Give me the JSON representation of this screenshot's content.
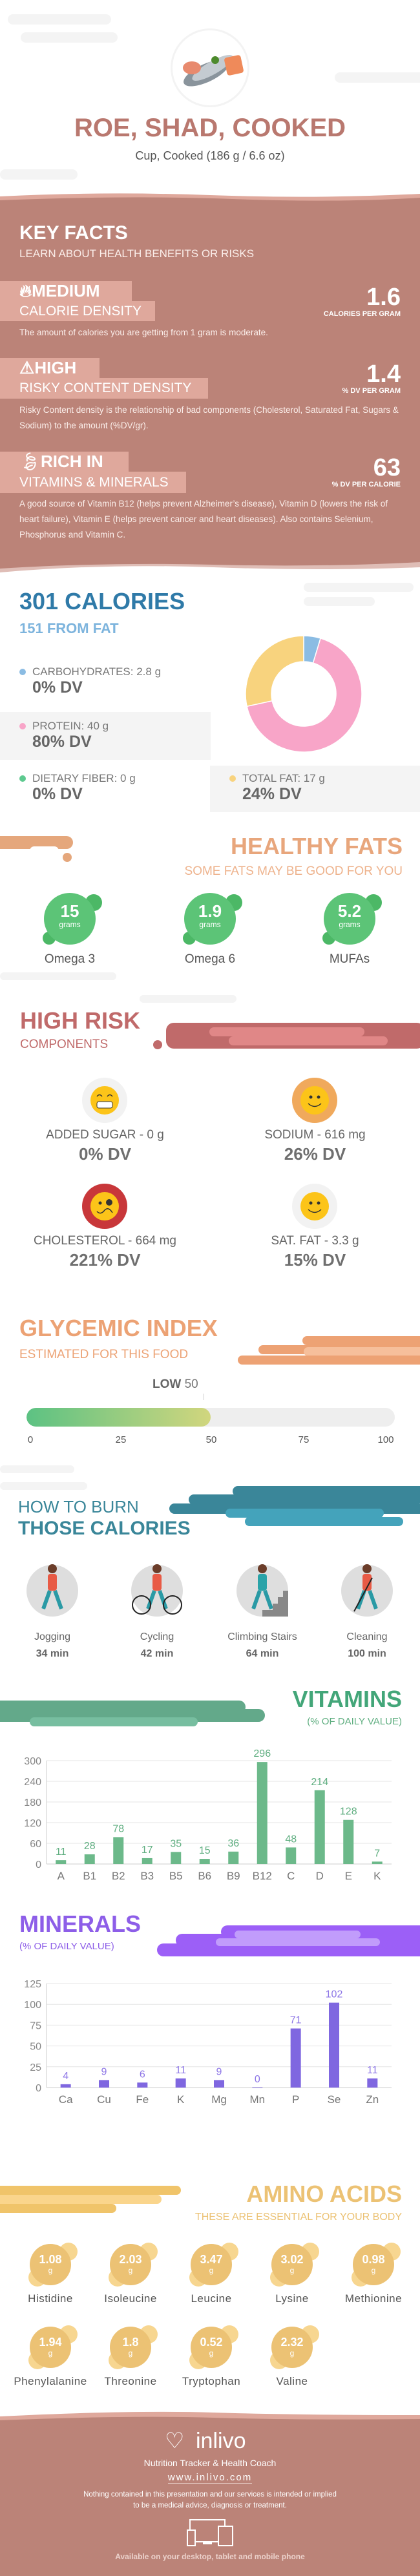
{
  "header": {
    "title": "ROE, SHAD, COOKED",
    "serving": "Cup, Cooked (186 g / 6.6 oz)",
    "image_icon": "fish-image"
  },
  "key_facts": {
    "title": "KEY FACTS",
    "subtitle": "LEARN ABOUT HEALTH BENEFITS OR RISKS",
    "items": [
      {
        "icon": "flame-icon",
        "level": "MEDIUM",
        "label": "CALORIE DENSITY",
        "value": "1.6",
        "unit": "CALORIES PER GRAM",
        "description": "The amount of calories you are getting from 1 gram is moderate."
      },
      {
        "icon": "warning-icon",
        "level": "HIGH",
        "label": "RISKY CONTENT DENSITY",
        "value": "1.4",
        "unit": "% DV PER GRAM",
        "description": "Risky Content density is the relationship of bad components (Cholesterol, Saturated Fat, Sugars & Sodium) to the amount (%DV/gr)."
      },
      {
        "icon": "leaf-icon",
        "level": "RICH  IN",
        "label": "VITAMINS & MINERALS",
        "value": "63",
        "unit": "% DV PER CALORIE",
        "description": "A good source of Vitamin B12 (helps prevent Alzheimer’s disease), Vitamin D (lowers the risk of heart failure), Vitamin E (helps prevent cancer and heart diseases). Also contains Selenium, Phosphorus and Vitamin C."
      }
    ]
  },
  "calories": {
    "title": "301 CALORIES",
    "from_fat": "151 FROM FAT",
    "macros": [
      {
        "label": "CARBOHYDRATES: 2.8 g",
        "dv": "0% DV",
        "grams": 2.8,
        "color": "#8bbce3"
      },
      {
        "label": "PROTEIN: 40 g",
        "dv": "80% DV",
        "grams": 40,
        "color": "#f8a5c8"
      },
      {
        "label": "DIETARY FIBER: 0 g",
        "dv": "0% DV",
        "grams": 0,
        "color": "#5dc98f"
      },
      {
        "label": "TOTAL FAT: 17 g",
        "dv": "24% DV",
        "grams": 17,
        "color": "#f8d37e"
      }
    ]
  },
  "healthy_fats": {
    "title": "HEALTHY FATS",
    "subtitle": "SOME FATS MAY BE GOOD FOR YOU",
    "items": [
      {
        "value": "15",
        "unit": "grams",
        "name": "Omega 3"
      },
      {
        "value": "1.9",
        "unit": "grams",
        "name": "Omega 6"
      },
      {
        "value": "5.2",
        "unit": "grams",
        "name": "MUFAs"
      }
    ]
  },
  "high_risk": {
    "title": "HIGH RISK",
    "subtitle": "COMPONENTS",
    "items": [
      {
        "label": "ADDED SUGAR - 0 g",
        "dv": "0% DV",
        "icon": "grinning-face-icon",
        "ring": "#f2f2f2"
      },
      {
        "label": "SODIUM - 616 mg",
        "dv": "26% DV",
        "icon": "smiling-face-icon",
        "ring": "#f0a95c"
      },
      {
        "label": "CHOLESTEROL - 664 mg",
        "dv": "221% DV",
        "icon": "worried-face-icon",
        "ring": "#c8373a"
      },
      {
        "label": "SAT. FAT - 3.3 g",
        "dv": "15% DV",
        "icon": "smiling-face-icon",
        "ring": "#f2f2f2"
      }
    ]
  },
  "glycemic": {
    "title": "GLYCEMIC INDEX",
    "subtitle": "ESTIMATED FOR THIS FOOD",
    "level": "LOW",
    "value": 50,
    "value_label": "50",
    "ticks": [
      "0",
      "25",
      "50",
      "75",
      "100"
    ]
  },
  "burn": {
    "title_1": "HOW TO BURN",
    "title_2": "THOSE CALORIES",
    "items": [
      {
        "name": "Jogging",
        "time": "34 min",
        "icon": "jogging-icon"
      },
      {
        "name": "Cycling",
        "time": "42 min",
        "icon": "cycling-icon"
      },
      {
        "name": "Climbing Stairs",
        "time": "64 min",
        "icon": "climbing-stairs-icon"
      },
      {
        "name": "Cleaning",
        "time": "100 min",
        "icon": "cleaning-icon"
      }
    ]
  },
  "vitamins": {
    "title": "VITAMINS",
    "subtitle": "(% OF DAILY VALUE)"
  },
  "minerals": {
    "title": "MINERALS",
    "subtitle": "(% OF DAILY VALUE)"
  },
  "chart_data": [
    {
      "type": "bar",
      "categories": [
        "A",
        "B1",
        "B2",
        "B3",
        "B5",
        "B6",
        "B9",
        "B12",
        "C",
        "D",
        "E",
        "K"
      ],
      "values": [
        11,
        28,
        78,
        17,
        35,
        15,
        36,
        296,
        48,
        214,
        128,
        7
      ],
      "yticks": [
        0,
        60,
        120,
        180,
        240,
        300
      ],
      "ylim": [
        0,
        300
      ],
      "grid": true,
      "color": "#6cb98a",
      "label_color": "#5fae80"
    },
    {
      "type": "bar",
      "categories": [
        "Ca",
        "Cu",
        "Fe",
        "K",
        "Mg",
        "Mn",
        "P",
        "Se",
        "Zn"
      ],
      "values": [
        4,
        9,
        6,
        11,
        9,
        0,
        71,
        102,
        11
      ],
      "yticks": [
        0,
        25,
        50,
        75,
        100,
        125
      ],
      "ylim": [
        0,
        125
      ],
      "grid": true,
      "color": "#7f67e0",
      "label_color": "#8d76e6"
    }
  ],
  "amino": {
    "title": "AMINO ACIDS",
    "subtitle": "THESE ARE ESSENTIAL FOR YOUR BODY",
    "items": [
      {
        "value": "1.08",
        "unit": "g",
        "name": "Histidine"
      },
      {
        "value": "2.03",
        "unit": "g",
        "name": "Isoleucine"
      },
      {
        "value": "3.47",
        "unit": "g",
        "name": "Leucine"
      },
      {
        "value": "3.02",
        "unit": "g",
        "name": "Lysine"
      },
      {
        "value": "0.98",
        "unit": "g",
        "name": "Methionine"
      },
      {
        "value": "1.94",
        "unit": "g",
        "name": "Phenylalanine"
      },
      {
        "value": "1.8",
        "unit": "g",
        "name": "Threonine"
      },
      {
        "value": "0.52",
        "unit": "g",
        "name": "Tryptophan"
      },
      {
        "value": "2.32",
        "unit": "g",
        "name": "Valine"
      }
    ]
  },
  "footer": {
    "brand": "inlivo",
    "tagline": "Nutrition Tracker & Health Coach",
    "url": "www.inlivo.com",
    "disclaimer_1": "Nothing contained in this presentation and our services is intended or implied",
    "disclaimer_2": "to be a medical advice, diagnosis or treatment.",
    "available": "Available on your desktop, tablet and mobile phone"
  }
}
